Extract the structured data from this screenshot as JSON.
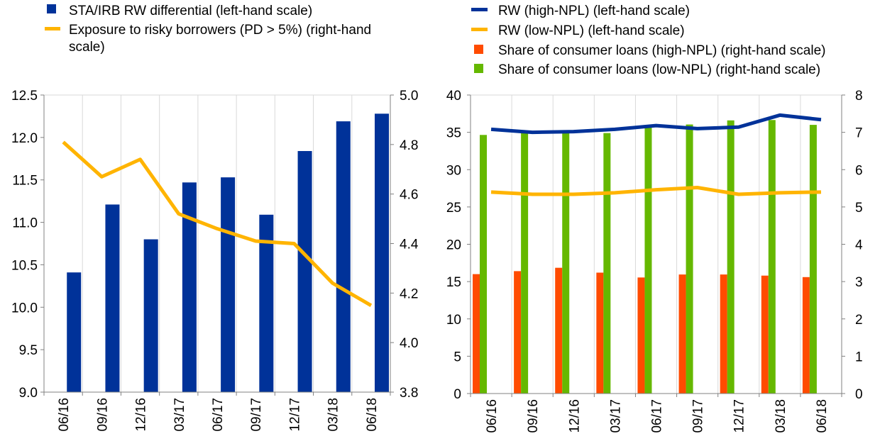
{
  "chart_data": [
    {
      "type": "bar",
      "categories": [
        "06/16",
        "09/16",
        "12/16",
        "03/17",
        "06/17",
        "09/17",
        "12/17",
        "03/18",
        "06/18"
      ],
      "series": [
        {
          "name": "STA/IRB RW differential (left-hand scale)",
          "kind": "bar",
          "axis": "left",
          "color": "#003299",
          "values": [
            10.41,
            11.21,
            10.8,
            11.47,
            11.53,
            11.09,
            11.84,
            12.19,
            12.28
          ]
        },
        {
          "name": "Exposure to risky borrowers (PD > 5%) (right-hand scale)",
          "kind": "line",
          "axis": "right",
          "color": "#FFB400",
          "values": [
            4.81,
            4.67,
            4.74,
            4.52,
            4.46,
            4.41,
            4.4,
            4.24,
            4.15
          ]
        }
      ],
      "legend_lines": [
        [
          "STA/IRB RW differential (left-hand scale)"
        ],
        [
          "Exposure to risky borrowers (PD > 5%) (right-hand",
          "scale)"
        ]
      ],
      "ylim": [
        9.0,
        12.5
      ],
      "yticks": [
        "9.0",
        "9.5",
        "10.0",
        "10.5",
        "11.0",
        "11.5",
        "12.0",
        "12.5"
      ],
      "y2lim": [
        3.8,
        5.0
      ],
      "y2ticks": [
        "3.8",
        "4.0",
        "4.2",
        "4.4",
        "4.6",
        "4.8",
        "5.0"
      ],
      "grid": true,
      "legend_position": "top"
    },
    {
      "type": "bar",
      "categories": [
        "06/16",
        "09/16",
        "12/16",
        "03/17",
        "06/17",
        "09/17",
        "12/17",
        "03/18",
        "06/18"
      ],
      "series": [
        {
          "name": "RW (high-NPL) (left-hand scale)",
          "kind": "line",
          "axis": "left",
          "color": "#003299",
          "values": [
            35.4,
            35.0,
            35.1,
            35.4,
            35.9,
            35.5,
            35.7,
            37.3,
            36.7
          ]
        },
        {
          "name": "RW (low-NPL) (left-hand scale)",
          "kind": "line",
          "axis": "left",
          "color": "#FFB400",
          "values": [
            27.0,
            26.7,
            26.7,
            26.9,
            27.3,
            27.6,
            26.7,
            26.9,
            27.0
          ]
        },
        {
          "name": "Share of consumer loans (high-NPL) (right-hand scale)",
          "kind": "bar",
          "axis": "right",
          "color": "#FF4B00",
          "values": [
            3.2,
            3.28,
            3.37,
            3.24,
            3.11,
            3.19,
            3.19,
            3.16,
            3.12
          ]
        },
        {
          "name": "Share of consumer loans (low-NPL) (right-hand scale)",
          "kind": "bar",
          "axis": "right",
          "color": "#65B800",
          "values": [
            6.93,
            7.01,
            7.0,
            6.98,
            7.15,
            7.21,
            7.32,
            7.33,
            7.2
          ]
        }
      ],
      "ylim": [
        0,
        40
      ],
      "yticks": [
        "0",
        "5",
        "10",
        "15",
        "20",
        "25",
        "30",
        "35",
        "40"
      ],
      "y2lim": [
        0,
        8
      ],
      "y2ticks": [
        "0",
        "1",
        "2",
        "3",
        "4",
        "5",
        "6",
        "7",
        "8"
      ],
      "grid": true,
      "legend_position": "top"
    }
  ]
}
